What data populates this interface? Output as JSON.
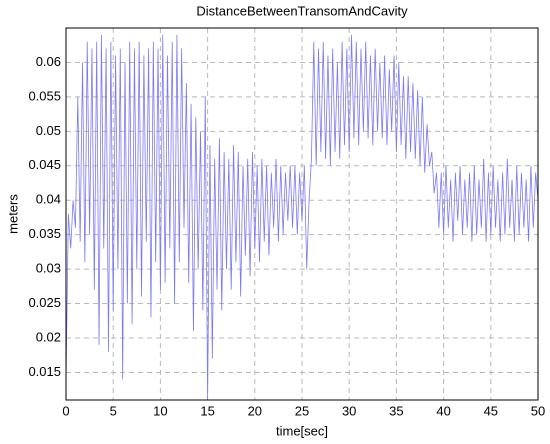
{
  "chart_data": {
    "type": "line",
    "title": "DistanceBetweenTransomAndCavity",
    "xlabel": "time[sec]",
    "ylabel": "meters",
    "color": "#7b7bf5",
    "xlim": [
      0,
      50
    ],
    "ylim": [
      0.011,
      0.065
    ],
    "xticks": [
      0,
      5,
      10,
      15,
      20,
      25,
      30,
      35,
      40,
      45,
      50
    ],
    "yticks": [
      0.015,
      0.02,
      0.025,
      0.03,
      0.035,
      0.04,
      0.045,
      0.05,
      0.055,
      0.06
    ],
    "grid": true,
    "x": [
      0,
      0.25,
      0.5,
      0.75,
      1,
      1.25,
      1.5,
      1.75,
      2,
      2.25,
      2.5,
      2.75,
      3,
      3.25,
      3.5,
      3.75,
      4,
      4.25,
      4.5,
      4.75,
      5,
      5.25,
      5.5,
      5.75,
      6,
      6.25,
      6.5,
      6.75,
      7,
      7.25,
      7.5,
      7.75,
      8,
      8.25,
      8.5,
      8.75,
      9,
      9.25,
      9.5,
      9.75,
      10,
      10.25,
      10.5,
      10.75,
      11,
      11.25,
      11.5,
      11.75,
      12,
      12.25,
      12.5,
      12.75,
      13,
      13.25,
      13.5,
      13.75,
      14,
      14.25,
      14.5,
      14.75,
      15,
      15.25,
      15.5,
      15.75,
      16,
      16.25,
      16.5,
      16.75,
      17,
      17.25,
      17.5,
      17.75,
      18,
      18.25,
      18.5,
      18.75,
      19,
      19.25,
      19.5,
      19.75,
      20,
      20.25,
      20.5,
      20.75,
      21,
      21.25,
      21.5,
      21.75,
      22,
      22.25,
      22.5,
      22.75,
      23,
      23.25,
      23.5,
      23.75,
      24,
      24.25,
      24.5,
      24.75,
      25,
      25.25,
      25.5,
      25.75,
      26,
      26.25,
      26.5,
      26.75,
      27,
      27.25,
      27.5,
      27.75,
      28,
      28.25,
      28.5,
      28.75,
      29,
      29.25,
      29.5,
      29.75,
      30,
      30.25,
      30.5,
      30.75,
      31,
      31.25,
      31.5,
      31.75,
      32,
      32.25,
      32.5,
      32.75,
      33,
      33.25,
      33.5,
      33.75,
      34,
      34.25,
      34.5,
      34.75,
      35,
      35.25,
      35.5,
      35.75,
      36,
      36.25,
      36.5,
      36.75,
      37,
      37.25,
      37.5,
      37.75,
      38,
      38.25,
      38.5,
      38.75,
      39,
      39.25,
      39.5,
      39.75,
      40,
      40.25,
      40.5,
      40.75,
      41,
      41.25,
      41.5,
      41.75,
      42,
      42.25,
      42.5,
      42.75,
      43,
      43.25,
      43.5,
      43.75,
      44,
      44.25,
      44.5,
      44.75,
      45,
      45.25,
      45.5,
      45.75,
      46,
      46.25,
      46.5,
      46.75,
      47,
      47.25,
      47.5,
      47.75,
      48,
      48.25,
      48.5,
      48.75,
      49,
      49.25,
      49.5,
      49.75,
      50
    ],
    "values": [
      0.0138,
      0.038,
      0.033,
      0.04,
      0.036,
      0.055,
      0.034,
      0.06,
      0.031,
      0.063,
      0.035,
      0.062,
      0.027,
      0.063,
      0.019,
      0.064,
      0.033,
      0.062,
      0.018,
      0.063,
      0.024,
      0.061,
      0.03,
      0.062,
      0.014,
      0.06,
      0.025,
      0.063,
      0.022,
      0.062,
      0.03,
      0.063,
      0.026,
      0.061,
      0.034,
      0.062,
      0.023,
      0.063,
      0.031,
      0.062,
      0.027,
      0.064,
      0.028,
      0.061,
      0.033,
      0.063,
      0.025,
      0.064,
      0.031,
      0.062,
      0.036,
      0.057,
      0.028,
      0.054,
      0.021,
      0.052,
      0.03,
      0.05,
      0.024,
      0.055,
      0.011,
      0.048,
      0.017,
      0.046,
      0.027,
      0.049,
      0.024,
      0.047,
      0.03,
      0.046,
      0.027,
      0.048,
      0.031,
      0.047,
      0.026,
      0.045,
      0.032,
      0.046,
      0.029,
      0.047,
      0.033,
      0.045,
      0.031,
      0.046,
      0.034,
      0.045,
      0.032,
      0.044,
      0.036,
      0.046,
      0.034,
      0.045,
      0.035,
      0.044,
      0.037,
      0.045,
      0.036,
      0.045,
      0.035,
      0.044,
      0.037,
      0.045,
      0.03,
      0.04,
      0.046,
      0.063,
      0.045,
      0.062,
      0.047,
      0.063,
      0.046,
      0.061,
      0.045,
      0.062,
      0.047,
      0.06,
      0.046,
      0.063,
      0.048,
      0.062,
      0.047,
      0.064,
      0.049,
      0.063,
      0.048,
      0.062,
      0.05,
      0.063,
      0.049,
      0.061,
      0.048,
      0.062,
      0.05,
      0.06,
      0.049,
      0.061,
      0.048,
      0.059,
      0.05,
      0.061,
      0.047,
      0.06,
      0.048,
      0.058,
      0.046,
      0.058,
      0.047,
      0.057,
      0.046,
      0.056,
      0.045,
      0.055,
      0.044,
      0.051,
      0.045,
      0.047,
      0.041,
      0.044,
      0.036,
      0.044,
      0.035,
      0.045,
      0.036,
      0.043,
      0.034,
      0.044,
      0.037,
      0.045,
      0.035,
      0.043,
      0.036,
      0.044,
      0.034,
      0.045,
      0.035,
      0.043,
      0.036,
      0.046,
      0.034,
      0.044,
      0.035,
      0.045,
      0.036,
      0.043,
      0.034,
      0.044,
      0.035,
      0.046,
      0.036,
      0.043,
      0.034,
      0.045,
      0.035,
      0.044,
      0.036,
      0.043,
      0.034,
      0.045,
      0.036,
      0.044,
      0.04
    ]
  }
}
